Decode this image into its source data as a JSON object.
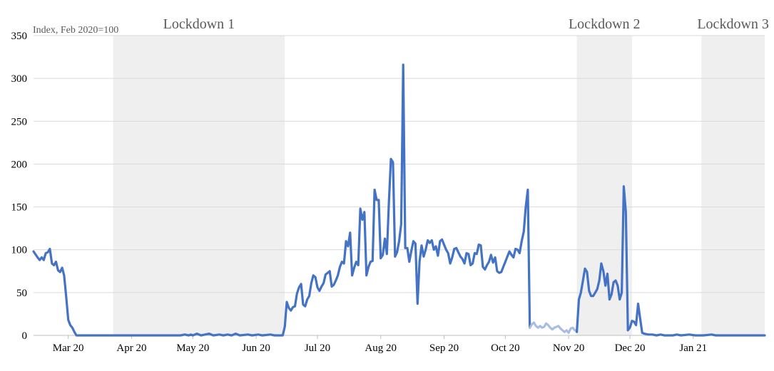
{
  "chart_data": {
    "type": "line",
    "ylabel": "Index, Feb 2020=100",
    "ylim": [
      0,
      350
    ],
    "yticks": [
      0,
      50,
      100,
      150,
      200,
      250,
      300,
      350
    ],
    "grid": true,
    "x_start": "2020-02-13",
    "x_end": "2021-02-05",
    "x_ticks": [
      {
        "label": "Mar 20",
        "date": "2020-03-01"
      },
      {
        "label": "Apr 20",
        "date": "2020-04-01"
      },
      {
        "label": "May 20",
        "date": "2020-05-01"
      },
      {
        "label": "Jun 20",
        "date": "2020-06-01"
      },
      {
        "label": "Jul 20",
        "date": "2020-07-01"
      },
      {
        "label": "Aug 20",
        "date": "2020-08-01"
      },
      {
        "label": "Sep 20",
        "date": "2020-09-01"
      },
      {
        "label": "Oct 20",
        "date": "2020-10-01"
      },
      {
        "label": "Nov 20",
        "date": "2020-11-01"
      },
      {
        "label": "Dec 20",
        "date": "2020-12-01"
      },
      {
        "label": "Jan 21",
        "date": "2021-01-01"
      }
    ],
    "lockdowns": [
      {
        "label": "Lockdown 1",
        "start": "2020-03-23",
        "end": "2020-06-15"
      },
      {
        "label": "Lockdown 2",
        "start": "2020-11-05",
        "end": "2020-12-02"
      },
      {
        "label": "Lockdown 3",
        "start": "2021-01-05",
        "end": "2021-02-05"
      }
    ],
    "series": [
      {
        "color": "#4472C4",
        "points": [
          [
            "2020-02-13",
            98
          ],
          [
            "2020-02-15",
            91
          ],
          [
            "2020-02-16",
            88
          ],
          [
            "2020-02-17",
            91
          ],
          [
            "2020-02-18",
            88
          ],
          [
            "2020-02-19",
            96
          ],
          [
            "2020-02-20",
            97
          ],
          [
            "2020-02-21",
            101
          ],
          [
            "2020-02-22",
            84
          ],
          [
            "2020-02-23",
            82
          ],
          [
            "2020-02-24",
            86
          ],
          [
            "2020-02-25",
            76
          ],
          [
            "2020-02-26",
            74
          ],
          [
            "2020-02-27",
            79
          ],
          [
            "2020-02-28",
            70
          ],
          [
            "2020-02-29",
            45
          ],
          [
            "2020-03-01",
            18
          ],
          [
            "2020-03-02",
            12
          ],
          [
            "2020-03-03",
            9
          ],
          [
            "2020-03-04",
            4
          ],
          [
            "2020-03-05",
            0
          ],
          [
            "2020-03-10",
            0
          ],
          [
            "2020-03-20",
            0
          ],
          [
            "2020-04-01",
            0
          ],
          [
            "2020-04-15",
            0
          ],
          [
            "2020-04-25",
            0
          ],
          [
            "2020-04-27",
            1
          ],
          [
            "2020-04-29",
            0
          ],
          [
            "2020-04-30",
            1
          ],
          [
            "2020-05-01",
            0
          ],
          [
            "2020-05-03",
            2
          ],
          [
            "2020-05-05",
            0
          ],
          [
            "2020-05-07",
            1
          ],
          [
            "2020-05-09",
            2
          ],
          [
            "2020-05-11",
            0
          ],
          [
            "2020-05-14",
            1
          ],
          [
            "2020-05-16",
            0
          ],
          [
            "2020-05-18",
            1
          ],
          [
            "2020-05-20",
            0
          ],
          [
            "2020-05-22",
            2
          ],
          [
            "2020-05-24",
            0
          ],
          [
            "2020-05-28",
            1
          ],
          [
            "2020-05-30",
            0
          ],
          [
            "2020-06-02",
            1
          ],
          [
            "2020-06-04",
            0
          ],
          [
            "2020-06-08",
            1
          ],
          [
            "2020-06-10",
            0
          ],
          [
            "2020-06-14",
            0
          ],
          [
            "2020-06-15",
            10
          ],
          [
            "2020-06-16",
            39
          ],
          [
            "2020-06-17",
            32
          ],
          [
            "2020-06-18",
            29
          ],
          [
            "2020-06-19",
            33
          ],
          [
            "2020-06-20",
            34
          ],
          [
            "2020-06-21",
            49
          ],
          [
            "2020-06-22",
            56
          ],
          [
            "2020-06-23",
            60
          ],
          [
            "2020-06-24",
            36
          ],
          [
            "2020-06-25",
            34
          ],
          [
            "2020-06-26",
            42
          ],
          [
            "2020-06-27",
            46
          ],
          [
            "2020-06-28",
            61
          ],
          [
            "2020-06-29",
            70
          ],
          [
            "2020-06-30",
            68
          ],
          [
            "2020-07-01",
            56
          ],
          [
            "2020-07-02",
            52
          ],
          [
            "2020-07-03",
            57
          ],
          [
            "2020-07-04",
            61
          ],
          [
            "2020-07-05",
            71
          ],
          [
            "2020-07-06",
            73
          ],
          [
            "2020-07-07",
            75
          ],
          [
            "2020-07-08",
            57
          ],
          [
            "2020-07-09",
            59
          ],
          [
            "2020-07-10",
            64
          ],
          [
            "2020-07-11",
            70
          ],
          [
            "2020-07-12",
            80
          ],
          [
            "2020-07-13",
            86
          ],
          [
            "2020-07-14",
            84
          ],
          [
            "2020-07-15",
            110
          ],
          [
            "2020-07-16",
            104
          ],
          [
            "2020-07-17",
            120
          ],
          [
            "2020-07-18",
            70
          ],
          [
            "2020-07-19",
            79
          ],
          [
            "2020-07-20",
            86
          ],
          [
            "2020-07-21",
            82
          ],
          [
            "2020-07-22",
            148
          ],
          [
            "2020-07-23",
            135
          ],
          [
            "2020-07-24",
            144
          ],
          [
            "2020-07-25",
            70
          ],
          [
            "2020-07-26",
            80
          ],
          [
            "2020-07-27",
            86
          ],
          [
            "2020-07-28",
            87
          ],
          [
            "2020-07-29",
            170
          ],
          [
            "2020-07-30",
            158
          ],
          [
            "2020-07-31",
            158
          ],
          [
            "2020-08-01",
            90
          ],
          [
            "2020-08-02",
            94
          ],
          [
            "2020-08-03",
            113
          ],
          [
            "2020-08-04",
            95
          ],
          [
            "2020-08-05",
            156
          ],
          [
            "2020-08-06",
            206
          ],
          [
            "2020-08-07",
            202
          ],
          [
            "2020-08-08",
            92
          ],
          [
            "2020-08-09",
            97
          ],
          [
            "2020-08-10",
            110
          ],
          [
            "2020-08-11",
            130
          ],
          [
            "2020-08-12",
            316
          ],
          [
            "2020-08-13",
            102
          ],
          [
            "2020-08-14",
            102
          ],
          [
            "2020-08-15",
            86
          ],
          [
            "2020-08-16",
            99
          ],
          [
            "2020-08-17",
            110
          ],
          [
            "2020-08-18",
            107
          ],
          [
            "2020-08-19",
            37
          ],
          [
            "2020-08-20",
            86
          ],
          [
            "2020-08-21",
            105
          ],
          [
            "2020-08-22",
            92
          ],
          [
            "2020-08-23",
            100
          ],
          [
            "2020-08-24",
            111
          ],
          [
            "2020-08-25",
            108
          ],
          [
            "2020-08-26",
            111
          ],
          [
            "2020-08-27",
            100
          ],
          [
            "2020-08-28",
            104
          ],
          [
            "2020-08-29",
            93
          ],
          [
            "2020-08-30",
            110
          ],
          [
            "2020-08-31",
            112
          ],
          [
            "2020-09-01",
            106
          ],
          [
            "2020-09-02",
            100
          ],
          [
            "2020-09-03",
            96
          ],
          [
            "2020-09-04",
            84
          ],
          [
            "2020-09-05",
            91
          ],
          [
            "2020-09-06",
            101
          ],
          [
            "2020-09-07",
            102
          ],
          [
            "2020-09-08",
            97
          ],
          [
            "2020-09-09",
            92
          ],
          [
            "2020-09-10",
            89
          ],
          [
            "2020-09-11",
            84
          ],
          [
            "2020-09-12",
            96
          ],
          [
            "2020-09-13",
            95
          ],
          [
            "2020-09-14",
            82
          ],
          [
            "2020-09-15",
            84
          ],
          [
            "2020-09-16",
            96
          ],
          [
            "2020-09-17",
            95
          ],
          [
            "2020-09-18",
            106
          ],
          [
            "2020-09-19",
            105
          ],
          [
            "2020-09-20",
            80
          ],
          [
            "2020-09-21",
            77
          ],
          [
            "2020-09-22",
            82
          ],
          [
            "2020-09-23",
            86
          ],
          [
            "2020-09-24",
            94
          ],
          [
            "2020-09-25",
            85
          ],
          [
            "2020-09-26",
            91
          ],
          [
            "2020-09-27",
            75
          ],
          [
            "2020-09-28",
            73
          ],
          [
            "2020-09-29",
            74
          ],
          [
            "2020-09-30",
            80
          ],
          [
            "2020-10-01",
            86
          ],
          [
            "2020-10-02",
            92
          ],
          [
            "2020-10-03",
            98
          ],
          [
            "2020-10-04",
            94
          ],
          [
            "2020-10-05",
            91
          ],
          [
            "2020-10-06",
            101
          ],
          [
            "2020-10-07",
            100
          ],
          [
            "2020-10-08",
            96
          ],
          [
            "2020-10-09",
            110
          ],
          [
            "2020-10-10",
            121
          ],
          [
            "2020-10-11",
            150
          ],
          [
            "2020-10-12",
            170
          ],
          [
            "2020-10-13",
            9
          ]
        ]
      },
      {
        "color": "#A9BDE3",
        "points": [
          [
            "2020-10-13",
            9
          ],
          [
            "2020-10-14",
            13
          ],
          [
            "2020-10-15",
            15
          ],
          [
            "2020-10-16",
            11
          ],
          [
            "2020-10-17",
            9
          ],
          [
            "2020-10-18",
            11
          ],
          [
            "2020-10-19",
            9
          ],
          [
            "2020-10-20",
            10
          ],
          [
            "2020-10-21",
            14
          ],
          [
            "2020-10-22",
            12
          ],
          [
            "2020-10-23",
            9
          ],
          [
            "2020-10-24",
            7
          ],
          [
            "2020-10-25",
            9
          ],
          [
            "2020-10-26",
            10
          ],
          [
            "2020-10-27",
            11
          ],
          [
            "2020-10-28",
            8
          ],
          [
            "2020-10-29",
            6
          ],
          [
            "2020-10-30",
            4
          ],
          [
            "2020-10-31",
            6
          ],
          [
            "2020-11-01",
            3
          ],
          [
            "2020-11-02",
            8
          ],
          [
            "2020-11-03",
            9
          ],
          [
            "2020-11-04",
            6
          ],
          [
            "2020-11-05",
            5
          ]
        ]
      },
      {
        "color": "#4472C4",
        "points": [
          [
            "2020-11-05",
            4
          ],
          [
            "2020-11-06",
            42
          ],
          [
            "2020-11-07",
            50
          ],
          [
            "2020-11-08",
            64
          ],
          [
            "2020-11-09",
            78
          ],
          [
            "2020-11-10",
            74
          ],
          [
            "2020-11-11",
            52
          ],
          [
            "2020-11-12",
            46
          ],
          [
            "2020-11-13",
            46
          ],
          [
            "2020-11-14",
            50
          ],
          [
            "2020-11-15",
            54
          ],
          [
            "2020-11-16",
            64
          ],
          [
            "2020-11-17",
            84
          ],
          [
            "2020-11-18",
            75
          ],
          [
            "2020-11-19",
            58
          ],
          [
            "2020-11-20",
            72
          ],
          [
            "2020-11-21",
            42
          ],
          [
            "2020-11-22",
            48
          ],
          [
            "2020-11-23",
            62
          ],
          [
            "2020-11-24",
            64
          ],
          [
            "2020-11-25",
            58
          ],
          [
            "2020-11-26",
            42
          ],
          [
            "2020-11-27",
            50
          ],
          [
            "2020-11-28",
            174
          ],
          [
            "2020-11-29",
            144
          ],
          [
            "2020-11-30",
            6
          ],
          [
            "2020-12-01",
            9
          ],
          [
            "2020-12-02",
            17
          ],
          [
            "2020-12-03",
            16
          ],
          [
            "2020-12-04",
            12
          ],
          [
            "2020-12-05",
            37
          ],
          [
            "2020-12-06",
            20
          ],
          [
            "2020-12-07",
            3
          ],
          [
            "2020-12-08",
            2
          ],
          [
            "2020-12-10",
            1
          ],
          [
            "2020-12-12",
            1
          ],
          [
            "2020-12-14",
            0
          ],
          [
            "2020-12-16",
            1
          ],
          [
            "2020-12-18",
            0
          ],
          [
            "2020-12-22",
            0
          ],
          [
            "2020-12-24",
            1
          ],
          [
            "2020-12-26",
            0
          ],
          [
            "2020-12-30",
            1
          ],
          [
            "2021-01-02",
            0
          ],
          [
            "2021-01-06",
            0
          ],
          [
            "2021-01-10",
            1
          ],
          [
            "2021-01-12",
            0
          ],
          [
            "2021-01-20",
            0
          ],
          [
            "2021-02-05",
            0
          ]
        ]
      }
    ]
  }
}
